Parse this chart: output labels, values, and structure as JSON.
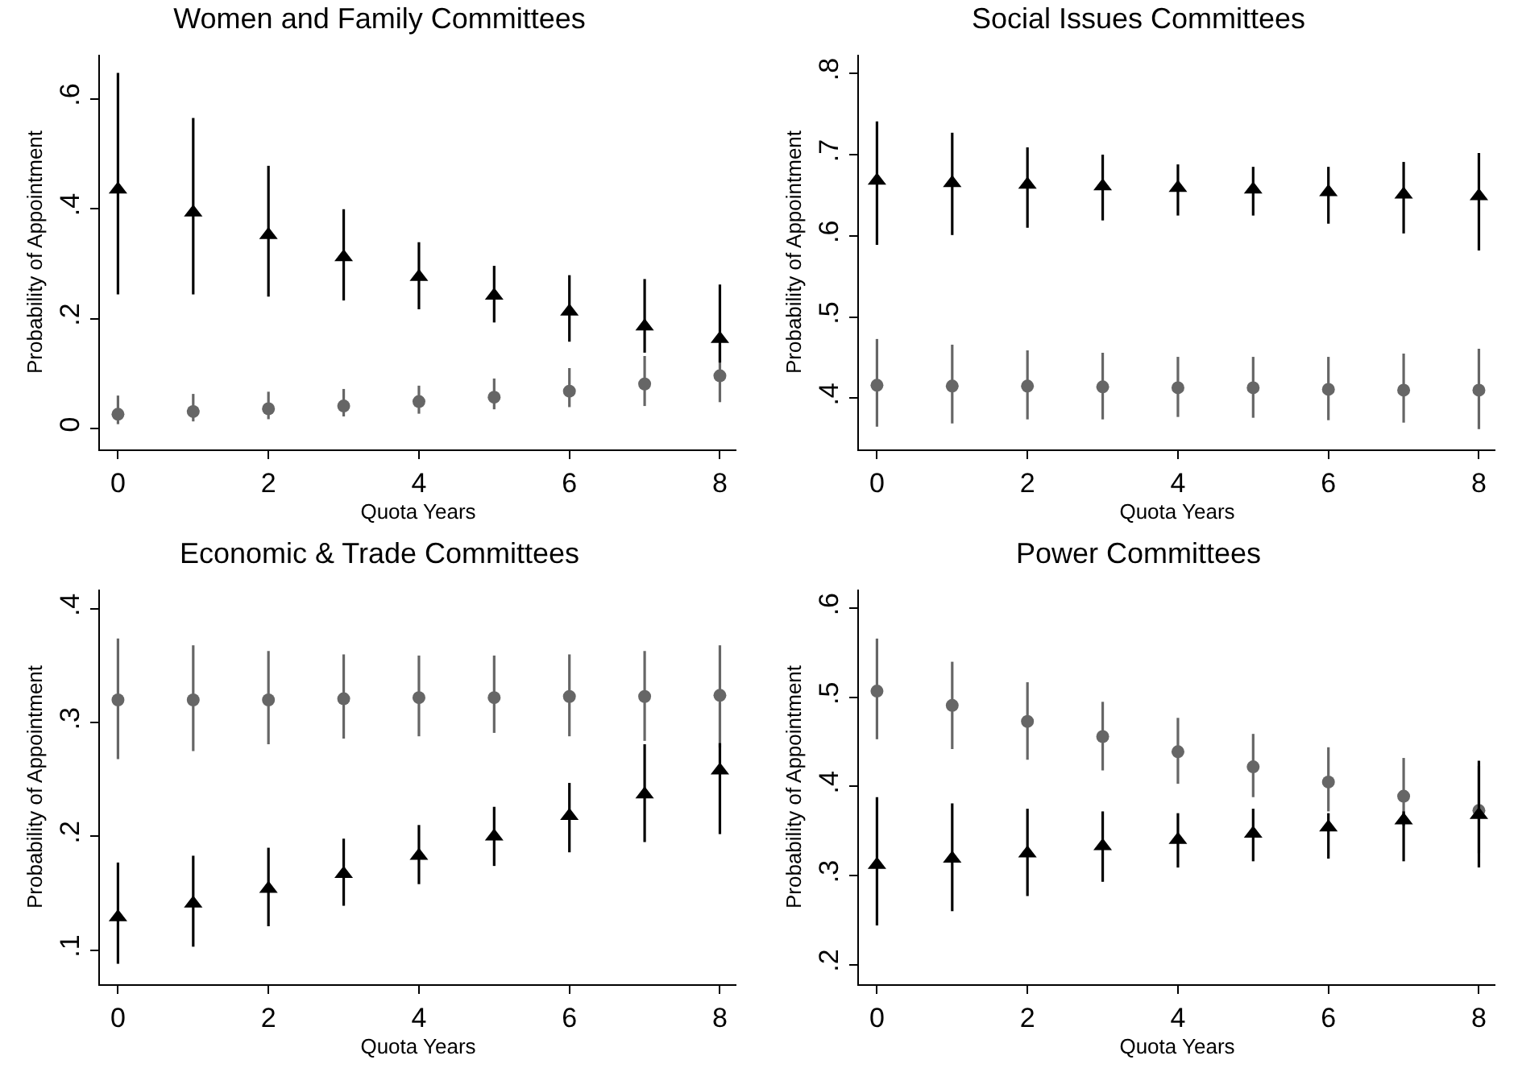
{
  "chart_data": [
    {
      "type": "scatter",
      "title": "Women and Family Committees",
      "xlabel": "Quota Years",
      "ylabel": "Probability of Appointment",
      "x": [
        0,
        1,
        2,
        3,
        4,
        5,
        6,
        7,
        8
      ],
      "xlim": [
        -0.24,
        8.22
      ],
      "xticks": [
        0,
        2,
        4,
        6,
        8
      ],
      "ylim": [
        -0.038,
        0.68
      ],
      "yticks": [
        0,
        {
          "value": 0.2,
          "label": ".2"
        },
        {
          "value": 0.4,
          "label": ".4"
        },
        {
          "value": 0.6,
          "label": ".6"
        }
      ],
      "grid": false,
      "series": [
        {
          "color": "#666666",
          "marker": "circle",
          "values": [
            0.026,
            0.031,
            0.036,
            0.041,
            0.049,
            0.057,
            0.068,
            0.081,
            0.096
          ],
          "errors": [
            [
              0.008,
              0.06
            ],
            [
              0.013,
              0.063
            ],
            [
              0.017,
              0.067
            ],
            [
              0.022,
              0.072
            ],
            [
              0.027,
              0.078
            ],
            [
              0.035,
              0.091
            ],
            [
              0.039,
              0.11
            ],
            [
              0.041,
              0.132
            ],
            [
              0.048,
              0.153
            ]
          ]
        },
        {
          "color": "#000000",
          "marker": "triangle",
          "values": [
            0.435,
            0.393,
            0.352,
            0.312,
            0.276,
            0.242,
            0.213,
            0.186,
            0.163
          ],
          "errors": [
            [
              0.244,
              0.647
            ],
            [
              0.244,
              0.565
            ],
            [
              0.24,
              0.478
            ],
            [
              0.233,
              0.399
            ],
            [
              0.217,
              0.339
            ],
            [
              0.193,
              0.296
            ],
            [
              0.158,
              0.279
            ],
            [
              0.138,
              0.272
            ],
            [
              0.12,
              0.262
            ]
          ]
        }
      ]
    },
    {
      "type": "scatter",
      "title": "Social Issues Committees",
      "xlabel": "Quota Years",
      "ylabel": "Probability of Appointment",
      "x": [
        0,
        1,
        2,
        3,
        4,
        5,
        6,
        7,
        8
      ],
      "xlim": [
        -0.24,
        8.22
      ],
      "xticks": [
        0,
        2,
        4,
        6,
        8
      ],
      "ylim": [
        0.337,
        0.823
      ],
      "yticks": [
        {
          "value": 0.4,
          "label": ".4"
        },
        {
          "value": 0.5,
          "label": ".5"
        },
        {
          "value": 0.6,
          "label": ".6"
        },
        {
          "value": 0.7,
          "label": ".7"
        },
        {
          "value": 0.8,
          "label": ".8"
        }
      ],
      "grid": false,
      "series": [
        {
          "color": "#666666",
          "marker": "circle",
          "values": [
            0.416,
            0.415,
            0.415,
            0.414,
            0.413,
            0.413,
            0.411,
            0.41,
            0.41
          ],
          "errors": [
            [
              0.365,
              0.473
            ],
            [
              0.369,
              0.466
            ],
            [
              0.374,
              0.459
            ],
            [
              0.374,
              0.456
            ],
            [
              0.377,
              0.451
            ],
            [
              0.376,
              0.451
            ],
            [
              0.373,
              0.451
            ],
            [
              0.37,
              0.455
            ],
            [
              0.362,
              0.461
            ]
          ]
        },
        {
          "color": "#000000",
          "marker": "triangle",
          "values": [
            0.668,
            0.665,
            0.663,
            0.661,
            0.659,
            0.657,
            0.654,
            0.651,
            0.649
          ],
          "errors": [
            [
              0.589,
              0.741
            ],
            [
              0.601,
              0.727
            ],
            [
              0.61,
              0.709
            ],
            [
              0.619,
              0.7
            ],
            [
              0.625,
              0.688
            ],
            [
              0.625,
              0.685
            ],
            [
              0.615,
              0.685
            ],
            [
              0.603,
              0.691
            ],
            [
              0.582,
              0.702
            ]
          ]
        }
      ]
    },
    {
      "type": "scatter",
      "title": "Economic & Trade Committees",
      "xlabel": "Quota Years",
      "ylabel": "Probability of Appointment",
      "x": [
        0,
        1,
        2,
        3,
        4,
        5,
        6,
        7,
        8
      ],
      "xlim": [
        -0.24,
        8.22
      ],
      "xticks": [
        0,
        2,
        4,
        6,
        8
      ],
      "ylim": [
        0.07,
        0.417
      ],
      "yticks": [
        {
          "value": 0.1,
          "label": ".1"
        },
        {
          "value": 0.2,
          "label": ".2"
        },
        {
          "value": 0.3,
          "label": ".3"
        },
        {
          "value": 0.4,
          "label": ".4"
        }
      ],
      "grid": false,
      "series": [
        {
          "color": "#666666",
          "marker": "circle",
          "values": [
            0.32,
            0.32,
            0.32,
            0.321,
            0.322,
            0.322,
            0.323,
            0.323,
            0.324
          ],
          "errors": [
            [
              0.268,
              0.374
            ],
            [
              0.275,
              0.368
            ],
            [
              0.281,
              0.363
            ],
            [
              0.286,
              0.36
            ],
            [
              0.288,
              0.359
            ],
            [
              0.291,
              0.359
            ],
            [
              0.288,
              0.36
            ],
            [
              0.284,
              0.363
            ],
            [
              0.278,
              0.368
            ]
          ]
        },
        {
          "color": "#000000",
          "marker": "triangle",
          "values": [
            0.129,
            0.141,
            0.154,
            0.167,
            0.183,
            0.2,
            0.218,
            0.237,
            0.258
          ],
          "errors": [
            [
              0.088,
              0.177
            ],
            [
              0.103,
              0.183
            ],
            [
              0.121,
              0.19
            ],
            [
              0.139,
              0.198
            ],
            [
              0.158,
              0.21
            ],
            [
              0.174,
              0.226
            ],
            [
              0.186,
              0.247
            ],
            [
              0.195,
              0.281
            ],
            [
              0.202,
              0.282
            ]
          ]
        }
      ]
    },
    {
      "type": "scatter",
      "title": "Power Committees",
      "xlabel": "Quota Years",
      "ylabel": "Probability of Appointment",
      "x": [
        0,
        1,
        2,
        3,
        4,
        5,
        6,
        7,
        8
      ],
      "xlim": [
        -0.24,
        8.22
      ],
      "xticks": [
        0,
        2,
        4,
        6,
        8
      ],
      "ylim": [
        0.178,
        0.621
      ],
      "yticks": [
        {
          "value": 0.2,
          "label": ".2"
        },
        {
          "value": 0.3,
          "label": ".3"
        },
        {
          "value": 0.4,
          "label": ".4"
        },
        {
          "value": 0.5,
          "label": ".5"
        },
        {
          "value": 0.6,
          "label": ".6"
        }
      ],
      "grid": false,
      "series": [
        {
          "color": "#666666",
          "marker": "circle",
          "values": [
            0.507,
            0.491,
            0.473,
            0.456,
            0.439,
            0.422,
            0.405,
            0.389,
            0.373
          ],
          "errors": [
            [
              0.453,
              0.566
            ],
            [
              0.442,
              0.54
            ],
            [
              0.43,
              0.517
            ],
            [
              0.418,
              0.495
            ],
            [
              0.403,
              0.477
            ],
            [
              0.388,
              0.459
            ],
            [
              0.372,
              0.444
            ],
            [
              0.356,
              0.432
            ],
            [
              0.325,
              0.423
            ]
          ]
        },
        {
          "color": "#000000",
          "marker": "triangle",
          "values": [
            0.312,
            0.319,
            0.325,
            0.333,
            0.34,
            0.347,
            0.354,
            0.362,
            0.368
          ],
          "errors": [
            [
              0.244,
              0.388
            ],
            [
              0.26,
              0.381
            ],
            [
              0.277,
              0.375
            ],
            [
              0.293,
              0.372
            ],
            [
              0.309,
              0.37
            ],
            [
              0.316,
              0.375
            ],
            [
              0.319,
              0.37
            ],
            [
              0.316,
              0.372
            ],
            [
              0.309,
              0.429
            ]
          ]
        }
      ]
    }
  ]
}
